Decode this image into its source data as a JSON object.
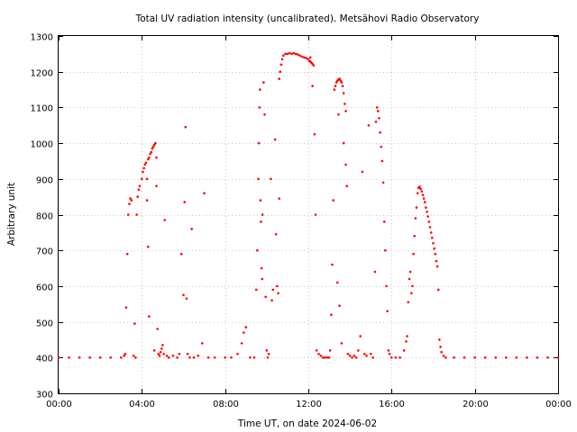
{
  "chart_data": {
    "type": "scatter",
    "title": "Total UV radiation intensity (uncalibrated). Metsähovi Radio Observatory",
    "xlabel": "Time UT, on date 2024-06-02",
    "ylabel": "Arbitrary unit",
    "x_unit": "hours UT",
    "xlim": [
      0,
      24
    ],
    "ylim": [
      300,
      1300
    ],
    "x_ticks": [
      {
        "value": 0,
        "label": "00:00"
      },
      {
        "value": 4,
        "label": "04:00"
      },
      {
        "value": 8,
        "label": "08:00"
      },
      {
        "value": 12,
        "label": "12:00"
      },
      {
        "value": 16,
        "label": "16:00"
      },
      {
        "value": 20,
        "label": "20:00"
      },
      {
        "value": 24,
        "label": "00:00"
      }
    ],
    "y_ticks": [
      300,
      400,
      500,
      600,
      700,
      800,
      900,
      1000,
      1100,
      1200,
      1300
    ],
    "grid": true,
    "legend": "none",
    "series": [
      {
        "color": "#ff0000",
        "points": [
          [
            0.0,
            400
          ],
          [
            0.5,
            400
          ],
          [
            1.0,
            400
          ],
          [
            1.5,
            400
          ],
          [
            2.0,
            400
          ],
          [
            2.5,
            400
          ],
          [
            3.0,
            400
          ],
          [
            3.15,
            405
          ],
          [
            3.2,
            410
          ],
          [
            3.25,
            540
          ],
          [
            3.3,
            690
          ],
          [
            3.35,
            800
          ],
          [
            3.4,
            830
          ],
          [
            3.45,
            845
          ],
          [
            3.5,
            840
          ],
          [
            3.6,
            405
          ],
          [
            3.65,
            495
          ],
          [
            3.7,
            400
          ],
          [
            3.75,
            800
          ],
          [
            3.8,
            850
          ],
          [
            3.85,
            870
          ],
          [
            3.9,
            880
          ],
          [
            4.0,
            900
          ],
          [
            4.05,
            920
          ],
          [
            4.1,
            930
          ],
          [
            4.15,
            940
          ],
          [
            4.2,
            945
          ],
          [
            4.25,
            900
          ],
          [
            4.3,
            955
          ],
          [
            4.35,
            960
          ],
          [
            4.4,
            970
          ],
          [
            4.45,
            975
          ],
          [
            4.5,
            985
          ],
          [
            4.55,
            990
          ],
          [
            4.6,
            995
          ],
          [
            4.65,
            1000
          ],
          [
            4.3,
            710
          ],
          [
            4.35,
            515
          ],
          [
            4.25,
            840
          ],
          [
            4.6,
            420
          ],
          [
            4.7,
            880
          ],
          [
            4.7,
            960
          ],
          [
            4.75,
            480
          ],
          [
            4.8,
            410
          ],
          [
            4.85,
            405
          ],
          [
            4.9,
            415
          ],
          [
            4.95,
            425
          ],
          [
            5.0,
            435
          ],
          [
            5.05,
            410
          ],
          [
            5.1,
            785
          ],
          [
            5.2,
            405
          ],
          [
            5.3,
            400
          ],
          [
            5.5,
            405
          ],
          [
            5.7,
            400
          ],
          [
            5.8,
            410
          ],
          [
            5.9,
            690
          ],
          [
            6.0,
            575
          ],
          [
            6.05,
            835
          ],
          [
            6.1,
            1045
          ],
          [
            6.15,
            565
          ],
          [
            6.2,
            410
          ],
          [
            6.3,
            400
          ],
          [
            6.4,
            760
          ],
          [
            6.5,
            400
          ],
          [
            6.7,
            405
          ],
          [
            6.9,
            440
          ],
          [
            7.0,
            860
          ],
          [
            7.2,
            400
          ],
          [
            7.5,
            400
          ],
          [
            8.0,
            400
          ],
          [
            8.3,
            400
          ],
          [
            8.6,
            410
          ],
          [
            8.8,
            440
          ],
          [
            8.9,
            470
          ],
          [
            9.0,
            485
          ],
          [
            9.2,
            400
          ],
          [
            9.4,
            400
          ],
          [
            9.5,
            590
          ],
          [
            9.55,
            700
          ],
          [
            9.6,
            900
          ],
          [
            9.62,
            1000
          ],
          [
            9.65,
            1100
          ],
          [
            9.68,
            1150
          ],
          [
            9.7,
            840
          ],
          [
            9.72,
            780
          ],
          [
            9.75,
            650
          ],
          [
            9.78,
            620
          ],
          [
            9.8,
            800
          ],
          [
            9.85,
            1170
          ],
          [
            9.9,
            1080
          ],
          [
            9.95,
            570
          ],
          [
            10.0,
            420
          ],
          [
            10.05,
            400
          ],
          [
            10.1,
            410
          ],
          [
            10.2,
            900
          ],
          [
            10.25,
            560
          ],
          [
            10.3,
            590
          ],
          [
            10.4,
            1010
          ],
          [
            10.45,
            745
          ],
          [
            10.5,
            600
          ],
          [
            10.55,
            580
          ],
          [
            10.6,
            845
          ],
          [
            10.6,
            1180
          ],
          [
            10.65,
            1200
          ],
          [
            10.7,
            1220
          ],
          [
            10.75,
            1235
          ],
          [
            10.8,
            1245
          ],
          [
            10.9,
            1250
          ],
          [
            11.0,
            1250
          ],
          [
            11.1,
            1252
          ],
          [
            11.2,
            1250
          ],
          [
            11.3,
            1252
          ],
          [
            11.4,
            1250
          ],
          [
            11.5,
            1248
          ],
          [
            11.6,
            1245
          ],
          [
            11.7,
            1242
          ],
          [
            11.8,
            1240
          ],
          [
            11.9,
            1238
          ],
          [
            12.0,
            1235
          ],
          [
            12.05,
            1230
          ],
          [
            12.1,
            1228
          ],
          [
            12.15,
            1225
          ],
          [
            12.2,
            1222
          ],
          [
            12.25,
            1218
          ],
          [
            12.1,
            1240
          ],
          [
            12.2,
            1160
          ],
          [
            12.3,
            1025
          ],
          [
            12.35,
            800
          ],
          [
            12.4,
            420
          ],
          [
            12.5,
            410
          ],
          [
            12.6,
            405
          ],
          [
            12.7,
            400
          ],
          [
            12.8,
            400
          ],
          [
            12.9,
            400
          ],
          [
            13.0,
            400
          ],
          [
            13.05,
            420
          ],
          [
            13.1,
            520
          ],
          [
            13.15,
            660
          ],
          [
            13.2,
            840
          ],
          [
            13.25,
            1150
          ],
          [
            13.3,
            1160
          ],
          [
            13.35,
            1170
          ],
          [
            13.4,
            1175
          ],
          [
            13.45,
            1178
          ],
          [
            13.5,
            1180
          ],
          [
            13.55,
            1175
          ],
          [
            13.6,
            1170
          ],
          [
            13.65,
            1160
          ],
          [
            13.7,
            1140
          ],
          [
            13.75,
            1110
          ],
          [
            13.8,
            1090
          ],
          [
            13.4,
            610
          ],
          [
            13.45,
            1080
          ],
          [
            13.5,
            545
          ],
          [
            13.6,
            440
          ],
          [
            13.7,
            1000
          ],
          [
            13.8,
            940
          ],
          [
            13.85,
            880
          ],
          [
            13.9,
            410
          ],
          [
            14.0,
            405
          ],
          [
            14.1,
            400
          ],
          [
            14.2,
            405
          ],
          [
            14.3,
            400
          ],
          [
            14.4,
            420
          ],
          [
            14.5,
            460
          ],
          [
            14.6,
            920
          ],
          [
            14.7,
            410
          ],
          [
            14.8,
            405
          ],
          [
            14.9,
            1050
          ],
          [
            15.0,
            410
          ],
          [
            15.1,
            400
          ],
          [
            15.2,
            640
          ],
          [
            15.25,
            1060
          ],
          [
            15.3,
            1100
          ],
          [
            15.35,
            1090
          ],
          [
            15.4,
            1070
          ],
          [
            15.45,
            1030
          ],
          [
            15.5,
            990
          ],
          [
            15.55,
            950
          ],
          [
            15.6,
            890
          ],
          [
            15.65,
            780
          ],
          [
            15.7,
            700
          ],
          [
            15.75,
            600
          ],
          [
            15.8,
            530
          ],
          [
            15.85,
            420
          ],
          [
            15.9,
            410
          ],
          [
            16.0,
            400
          ],
          [
            16.2,
            400
          ],
          [
            16.4,
            400
          ],
          [
            16.6,
            420
          ],
          [
            16.7,
            445
          ],
          [
            16.75,
            460
          ],
          [
            16.8,
            555
          ],
          [
            16.85,
            620
          ],
          [
            16.9,
            640
          ],
          [
            16.95,
            580
          ],
          [
            17.0,
            600
          ],
          [
            17.05,
            690
          ],
          [
            17.1,
            740
          ],
          [
            17.15,
            790
          ],
          [
            17.2,
            820
          ],
          [
            17.25,
            860
          ],
          [
            17.3,
            875
          ],
          [
            17.35,
            878
          ],
          [
            17.4,
            872
          ],
          [
            17.45,
            865
          ],
          [
            17.5,
            855
          ],
          [
            17.55,
            845
          ],
          [
            17.6,
            835
          ],
          [
            17.65,
            820
          ],
          [
            17.7,
            808
          ],
          [
            17.75,
            795
          ],
          [
            17.8,
            780
          ],
          [
            17.85,
            765
          ],
          [
            17.9,
            750
          ],
          [
            17.95,
            735
          ],
          [
            18.0,
            720
          ],
          [
            18.05,
            705
          ],
          [
            18.1,
            690
          ],
          [
            18.15,
            670
          ],
          [
            18.2,
            655
          ],
          [
            18.25,
            590
          ],
          [
            18.3,
            450
          ],
          [
            18.35,
            430
          ],
          [
            18.4,
            415
          ],
          [
            18.5,
            405
          ],
          [
            18.6,
            400
          ],
          [
            19.0,
            400
          ],
          [
            19.5,
            400
          ],
          [
            20.0,
            400
          ],
          [
            20.5,
            400
          ],
          [
            21.0,
            400
          ],
          [
            21.5,
            400
          ],
          [
            22.0,
            400
          ],
          [
            22.5,
            400
          ],
          [
            23.0,
            400
          ],
          [
            23.5,
            400
          ],
          [
            24.0,
            400
          ]
        ]
      }
    ]
  }
}
